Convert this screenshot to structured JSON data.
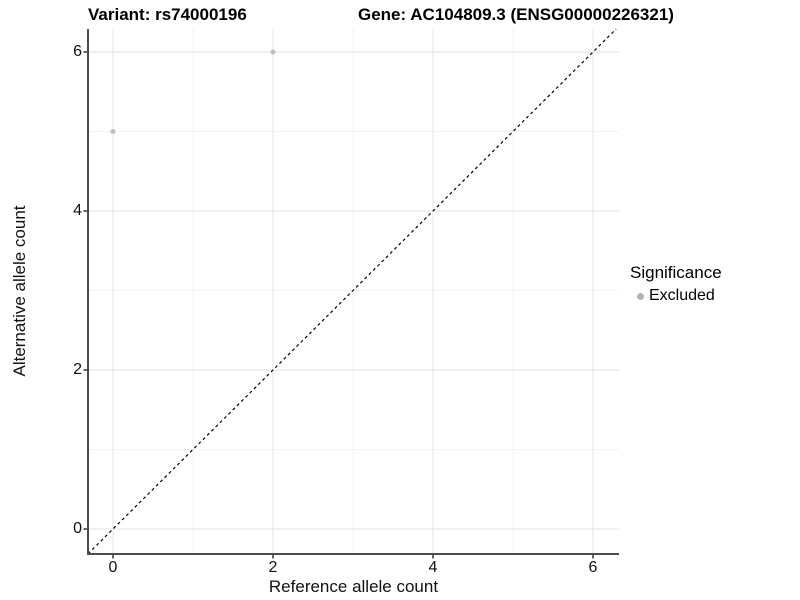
{
  "chart_data": {
    "type": "scatter",
    "title_left": "Variant: rs74000196",
    "title_right": "Gene: AC104809.3 (ENSG00000226321)",
    "xlabel": "Reference allele count",
    "ylabel": "Alternative allele count",
    "xlim": [
      -0.3125,
      6.325
    ],
    "ylim": [
      -0.3145,
      6.289
    ],
    "x_ticks": [
      0,
      2,
      4,
      6
    ],
    "y_ticks": [
      0,
      2,
      4,
      6
    ],
    "x_minor_ticks": [
      1,
      3,
      5
    ],
    "y_minor_ticks": [
      1,
      3,
      5
    ],
    "grid": "on",
    "series": [
      {
        "name": "Excluded",
        "color": "#bdbdbd",
        "points": [
          [
            0,
            5
          ],
          [
            2,
            6
          ]
        ]
      }
    ],
    "reference_line": {
      "kind": "identity y=x",
      "style": "dashed",
      "color": "#000000"
    },
    "legend": {
      "title": "Significance",
      "position": "right",
      "items": [
        {
          "label": "Excluded",
          "color": "#b3b3b3"
        }
      ]
    },
    "colors": {
      "background": "#ffffff",
      "axis_line": "#4d4d4d",
      "tick_mark": "#333333",
      "major_grid": "#e8e8e8",
      "minor_grid": "#f2f2f2",
      "point": "#bdbdbd",
      "text": "#111111"
    }
  }
}
